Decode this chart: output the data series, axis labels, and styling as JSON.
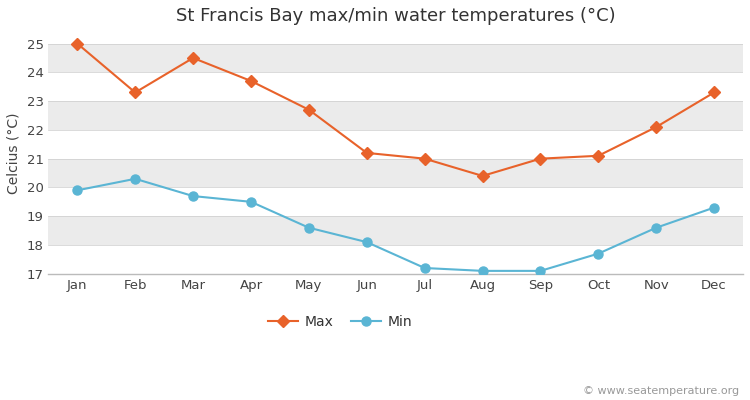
{
  "title": "St Francis Bay max/min water temperatures (°C)",
  "ylabel": "Celcius (°C)",
  "months": [
    "Jan",
    "Feb",
    "Mar",
    "Apr",
    "May",
    "Jun",
    "Jul",
    "Aug",
    "Sep",
    "Oct",
    "Nov",
    "Dec"
  ],
  "max_temps": [
    25.0,
    23.3,
    24.5,
    23.7,
    22.7,
    21.2,
    21.0,
    20.4,
    21.0,
    21.1,
    22.1,
    23.3
  ],
  "min_temps": [
    19.9,
    20.3,
    19.7,
    19.5,
    18.6,
    18.1,
    17.2,
    17.1,
    17.1,
    17.7,
    18.6,
    19.3
  ],
  "max_color": "#e8622a",
  "min_color": "#5ab5d4",
  "fig_bg_color": "#ffffff",
  "band_colors": [
    "#ffffff",
    "#ebebeb"
  ],
  "bottom_border_color": "#bbbbbb",
  "ylim": [
    17.0,
    25.4
  ],
  "yticks": [
    17,
    18,
    19,
    20,
    21,
    22,
    23,
    24,
    25
  ],
  "legend_labels": [
    "Max",
    "Min"
  ],
  "watermark": "© www.seatemperature.org",
  "title_fontsize": 13,
  "label_fontsize": 10,
  "tick_fontsize": 9.5,
  "watermark_fontsize": 8
}
